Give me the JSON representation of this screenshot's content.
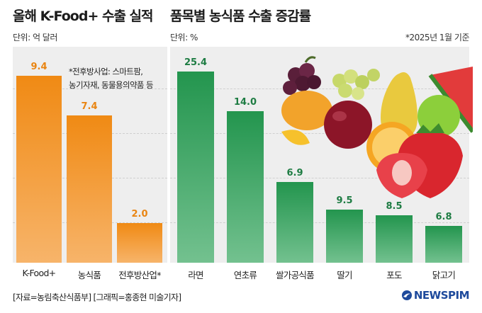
{
  "left": {
    "title": "올해 K-Food+ 수출 실적",
    "unit": "단위: 억 달러",
    "note_line1": "*전후방사업: 스마트팜,",
    "note_line2": "농기자재, 동물용의약품 등"
  },
  "right": {
    "title": "품목별 농식품 수출 증감률",
    "unit": "단위: %",
    "as_of": "*2025년 1월 기준"
  },
  "footer": {
    "source": "[자료=농림축산식품부] [그래픽=홍종현 미술기자]",
    "logo": "NEWSPIM"
  },
  "colors": {
    "orange": "#f08a14",
    "green": "#23954e",
    "panel": "#eeeeee",
    "logo": "#1e4a9c"
  },
  "chart_data": [
    {
      "type": "bar",
      "title": "올해 K-Food+ 수출 실적",
      "unit": "억 달러",
      "categories": [
        "K-Food+",
        "농식품",
        "전후방산업*"
      ],
      "values": [
        9.4,
        7.4,
        2.0
      ],
      "value_labels": [
        "9.4",
        "7.4",
        "2.0"
      ],
      "ylim": [
        0,
        10.5
      ],
      "grid": true
    },
    {
      "type": "bar",
      "title": "품목별 농식품 수출 증감률",
      "unit": "%",
      "categories": [
        "라면",
        "연초류",
        "쌀가공식품",
        "딸기",
        "포도",
        "닭고기"
      ],
      "values": [
        25.4,
        14.0,
        6.9,
        9.5,
        8.5,
        6.8
      ],
      "value_labels": [
        "25.4",
        "14.0",
        "6.9",
        "9.5",
        "8.5",
        "6.8"
      ],
      "grid": true
    }
  ]
}
